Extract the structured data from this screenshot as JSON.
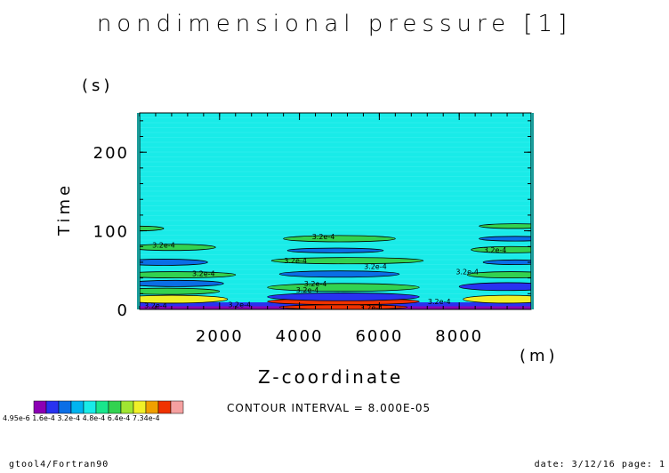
{
  "chart_data": {
    "type": "heatmap",
    "title": "nondimensional pressure [1]",
    "xlabel": "Z-coordinate",
    "x_unit": "(m)",
    "ylabel": "Time",
    "y_unit": "(s)",
    "xlim": [
      0,
      9800
    ],
    "ylim": [
      0,
      250
    ],
    "xticks": [
      2000,
      4000,
      6000,
      8000
    ],
    "xtick_labels": [
      "2000",
      "4000",
      "6000",
      "8000"
    ],
    "yticks": [
      0,
      100,
      200
    ],
    "ytick_labels": [
      "0",
      "100",
      "200"
    ],
    "background_color": "#19ebe8",
    "contour_interval": "CONTOUR INTERVAL = 8.000E-05",
    "contour_label": "3.2e-4",
    "colorbar": {
      "colors": [
        "#8c00b4",
        "#2832f0",
        "#0a6ee6",
        "#00b4f0",
        "#19ebe8",
        "#19e68c",
        "#32d250",
        "#a0e632",
        "#f0f028",
        "#f0a000",
        "#f03200",
        "#f5a0a0"
      ],
      "labels_text": "4.95e-6 1.6e-4 3.2e-4 4.8e-4 6.4e-4 7.34e-4"
    },
    "features": [
      {
        "kind": "band",
        "z": [
          0,
          9800
        ],
        "t": [
          0,
          4
        ],
        "color": "#8c00b4"
      },
      {
        "kind": "band",
        "z": [
          0,
          9800
        ],
        "t": [
          4,
          9
        ],
        "color": "#2832f0"
      },
      {
        "kind": "ellipse",
        "zc": 5100,
        "tc": 3,
        "rz": 1600,
        "rt": 3,
        "color": "#f03200"
      },
      {
        "kind": "ellipse",
        "zc": 5100,
        "tc": 10,
        "rz": 1900,
        "rt": 4,
        "color": "#f03200"
      },
      {
        "kind": "ellipse",
        "zc": 5100,
        "tc": 16,
        "rz": 1900,
        "rt": 5,
        "color": "#2832f0"
      },
      {
        "kind": "ellipse",
        "zc": 5100,
        "tc": 28,
        "rz": 1900,
        "rt": 5,
        "color": "#32d250"
      },
      {
        "kind": "ellipse",
        "zc": 5000,
        "tc": 45,
        "rz": 1500,
        "rt": 4,
        "color": "#0a6ee6"
      },
      {
        "kind": "ellipse",
        "zc": 5200,
        "tc": 62,
        "rz": 1900,
        "rt": 4,
        "color": "#32d250"
      },
      {
        "kind": "ellipse",
        "zc": 4900,
        "tc": 75,
        "rz": 1200,
        "rt": 3,
        "color": "#0a6ee6"
      },
      {
        "kind": "ellipse",
        "zc": 5000,
        "tc": 90,
        "rz": 1400,
        "rt": 4,
        "color": "#32d250"
      },
      {
        "kind": "ellipse",
        "zc": 800,
        "tc": 13,
        "rz": 1400,
        "rt": 5,
        "color": "#f0f028"
      },
      {
        "kind": "ellipse",
        "zc": 700,
        "tc": 23,
        "rz": 1300,
        "rt": 4,
        "color": "#32d250"
      },
      {
        "kind": "ellipse",
        "zc": 900,
        "tc": 33,
        "rz": 1200,
        "rt": 4,
        "color": "#0a6ee6"
      },
      {
        "kind": "ellipse",
        "zc": 900,
        "tc": 44,
        "rz": 1500,
        "rt": 4,
        "color": "#32d250"
      },
      {
        "kind": "ellipse",
        "zc": 600,
        "tc": 60,
        "rz": 1100,
        "rt": 4,
        "color": "#0a6ee6"
      },
      {
        "kind": "ellipse",
        "zc": 800,
        "tc": 79,
        "rz": 1100,
        "rt": 4,
        "color": "#32d250"
      },
      {
        "kind": "ellipse",
        "zc": 0,
        "tc": 103,
        "rz": 600,
        "rt": 3,
        "color": "#32d250"
      },
      {
        "kind": "ellipse",
        "zc": 9200,
        "tc": 13,
        "rz": 1100,
        "rt": 5,
        "color": "#f0f028"
      },
      {
        "kind": "ellipse",
        "zc": 9200,
        "tc": 29,
        "rz": 1200,
        "rt": 5,
        "color": "#2832f0"
      },
      {
        "kind": "ellipse",
        "zc": 9300,
        "tc": 44,
        "rz": 1100,
        "rt": 4,
        "color": "#32d250"
      },
      {
        "kind": "ellipse",
        "zc": 9400,
        "tc": 60,
        "rz": 800,
        "rt": 3,
        "color": "#0a6ee6"
      },
      {
        "kind": "ellipse",
        "zc": 9300,
        "tc": 76,
        "rz": 1000,
        "rt": 4,
        "color": "#32d250"
      },
      {
        "kind": "ellipse",
        "zc": 9400,
        "tc": 90,
        "rz": 900,
        "rt": 3,
        "color": "#0a6ee6"
      },
      {
        "kind": "ellipse",
        "zc": 9400,
        "tc": 106,
        "rz": 900,
        "rt": 3,
        "color": "#32d250"
      }
    ],
    "contour_labels": [
      {
        "z": 400,
        "t": 5
      },
      {
        "z": 2500,
        "t": 6
      },
      {
        "z": 5800,
        "t": 2
      },
      {
        "z": 7500,
        "t": 10
      },
      {
        "z": 4200,
        "t": 25
      },
      {
        "z": 4400,
        "t": 33
      },
      {
        "z": 1600,
        "t": 46
      },
      {
        "z": 8200,
        "t": 48
      },
      {
        "z": 5900,
        "t": 55
      },
      {
        "z": 3900,
        "t": 62
      },
      {
        "z": 600,
        "t": 82
      },
      {
        "z": 8900,
        "t": 76
      },
      {
        "z": 4600,
        "t": 93
      }
    ]
  },
  "footer": {
    "left": "gtool4/Fortran90",
    "right": "date: 3/12/16 page: 1"
  }
}
